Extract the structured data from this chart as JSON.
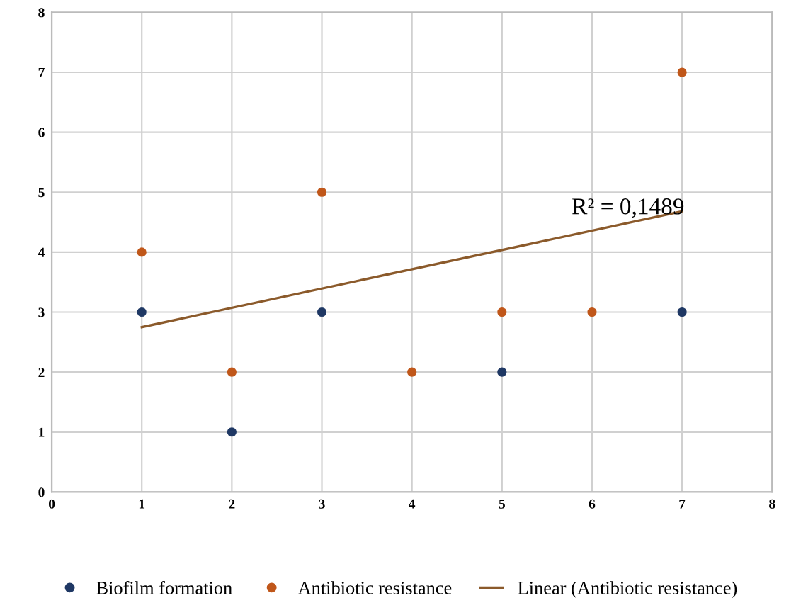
{
  "chart_data": {
    "type": "scatter",
    "series": [
      {
        "name": "Biofilm formation",
        "color": "#1f3864",
        "x": [
          1,
          2,
          3,
          5,
          7
        ],
        "values": [
          3,
          1,
          3,
          2,
          3
        ]
      },
      {
        "name": "Antibiotic resistance",
        "color": "#c0571a",
        "x": [
          1,
          2,
          3,
          4,
          5,
          6,
          7
        ],
        "values": [
          4,
          2,
          5,
          2,
          3,
          3,
          7
        ]
      },
      {
        "name": "Linear (Antibiotic resistance)",
        "type": "line",
        "color": "#8b5a2b",
        "x": [
          1,
          7
        ],
        "values": [
          2.75,
          4.68
        ],
        "marker": "none",
        "line_style": "solid"
      }
    ],
    "annotations": [
      {
        "text": "R² = 0,1489",
        "x": 6.4,
        "y": 4.55
      }
    ],
    "xlim": [
      0,
      8
    ],
    "ylim": [
      0,
      8
    ],
    "xticks": [
      0,
      1,
      2,
      3,
      4,
      5,
      6,
      7,
      8
    ],
    "yticks": [
      0,
      1,
      2,
      3,
      4,
      5,
      6,
      7,
      8
    ],
    "grid": true,
    "legend": "bottom",
    "marker": "circle"
  }
}
